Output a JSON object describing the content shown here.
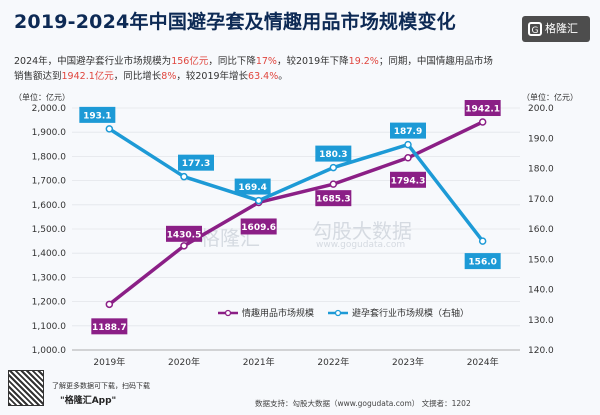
{
  "title": "2019-2024年中国避孕套及情趣用品市场规模变化",
  "brand": {
    "label": "格隆汇",
    "icon": "g-logo-icon"
  },
  "subtitle": {
    "p1": "2024年，中国避孕套行业市场规模为",
    "v1": "156亿元",
    "p2": "，同比下降",
    "v2": "17%",
    "p3": "，较2019年下降",
    "v3": "19.2%",
    "p4": "；同期，中国情趣用品市场",
    "p5": "销售额达到",
    "v4": "1942.1亿元",
    "p6": "，同比增长",
    "v5": "8%",
    "p7": "，较2019年增长",
    "v6": "63.4%",
    "p8": "。"
  },
  "watermark": {
    "text1": "格隆汇",
    "text2": "勾股大数据",
    "text3": "www.gogudata.com"
  },
  "footer": {
    "text": "数据支持：勾股大数据（www.gogudata.com）    文撰者：1202"
  },
  "qr_caption": {
    "line1": "了解更多数据可下载，扫码下载",
    "line2": "\"格隆汇App\""
  },
  "colors": {
    "purple": "#8b1f86",
    "blue": "#1d9ad6",
    "bg": "#f7f9fc"
  },
  "chart_data": {
    "type": "line",
    "categories": [
      "2019年",
      "2020年",
      "2021年",
      "2022年",
      "2023年",
      "2024年"
    ],
    "left_axis": {
      "unit": "（单位：亿元）",
      "ylim": [
        1000,
        2000
      ],
      "ticks": [
        "1,000.0",
        "1,100.0",
        "1,200.0",
        "1,300.0",
        "1,400.0",
        "1,500.0",
        "1,600.0",
        "1,700.0",
        "1,800.0",
        "1,900.0",
        "2,000.0"
      ]
    },
    "right_axis": {
      "unit": "（单位：亿元）",
      "ylim": [
        120,
        200
      ],
      "ticks": [
        "120.0",
        "130.0",
        "140.0",
        "150.0",
        "160.0",
        "170.0",
        "180.0",
        "190.0",
        "200.0"
      ]
    },
    "series": [
      {
        "name": "情趣用品市场规模",
        "axis": "left",
        "color": "#8b1f86",
        "values": [
          1188.7,
          1430.5,
          1609.6,
          1685.3,
          1794.3,
          1942.1
        ],
        "labels": [
          "1188.7",
          "1430.5",
          "1609.6",
          "1685.3",
          "1794.3",
          "1942.1"
        ]
      },
      {
        "name": "避孕套行业市场规模（右轴）",
        "axis": "right",
        "color": "#1d9ad6",
        "values": [
          193.1,
          177.3,
          169.4,
          180.3,
          187.9,
          156.0
        ],
        "labels": [
          "193.1",
          "177.3",
          "169.4",
          "180.3",
          "187.9",
          "156.0"
        ]
      }
    ],
    "grid": true,
    "legend": "bottom-center"
  }
}
